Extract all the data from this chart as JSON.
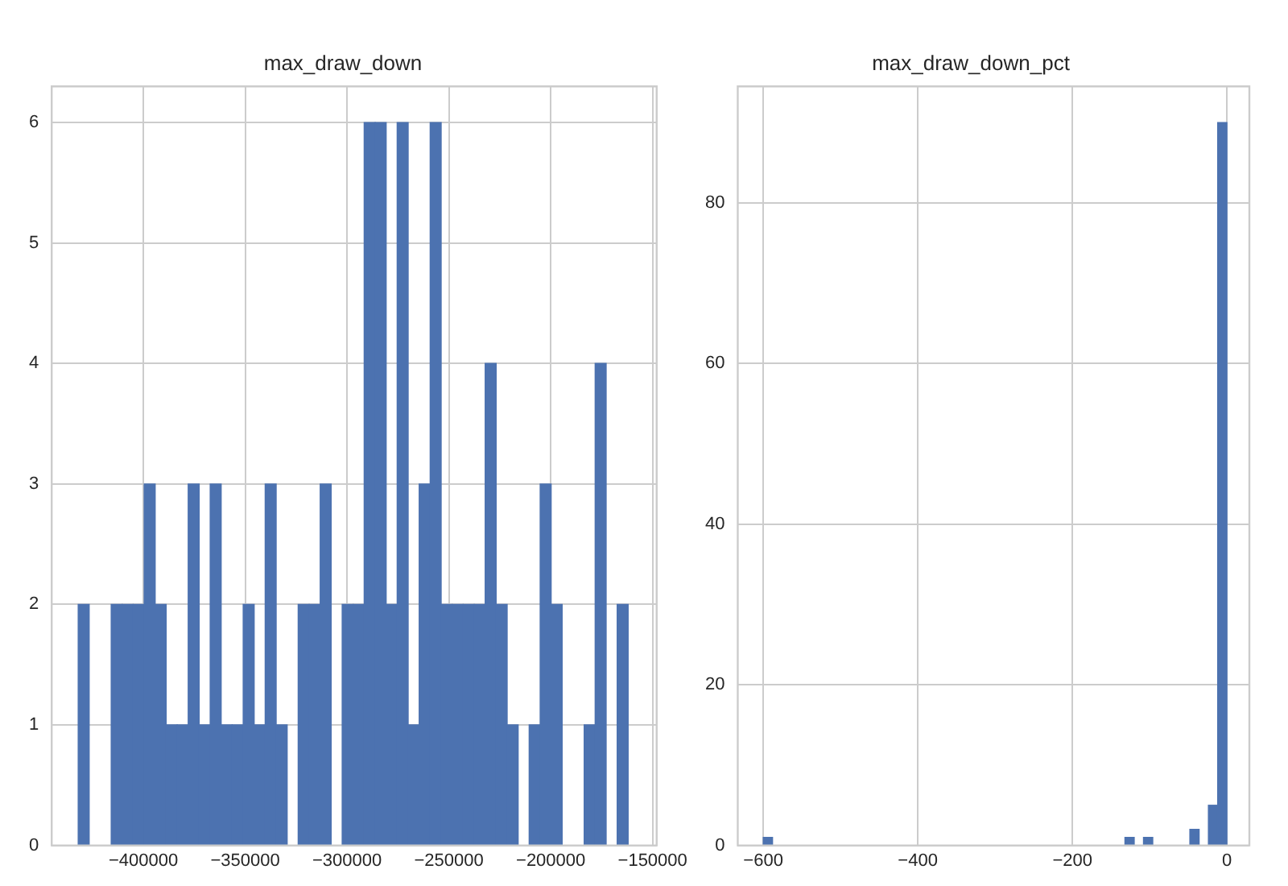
{
  "chart_data": [
    {
      "type": "histogram",
      "title": "max_draw_down",
      "color": "#4c72b0",
      "grid": true,
      "bins": [
        -432000,
        -426600,
        -421200,
        -415800,
        -410400,
        -405000,
        -399600,
        -394200,
        -388800,
        -383400,
        -378000,
        -372600,
        -367200,
        -361800,
        -356400,
        -351000,
        -345600,
        -340200,
        -334800,
        -329400,
        -324000,
        -318600,
        -313200,
        -307800,
        -302400,
        -297000,
        -291600,
        -286200,
        -280800,
        -275400,
        -270000,
        -264600,
        -259200,
        -253800,
        -248400,
        -243000,
        -237600,
        -232200,
        -226800,
        -221400,
        -216000,
        -210600,
        -205200,
        -199800,
        -194400,
        -189000,
        -183600,
        -178200,
        -172800,
        -167400,
        -162000
      ],
      "values": [
        2,
        0,
        0,
        2,
        2,
        2,
        3,
        2,
        1,
        1,
        3,
        1,
        3,
        1,
        1,
        2,
        1,
        3,
        1,
        0,
        2,
        2,
        3,
        0,
        2,
        2,
        6,
        6,
        2,
        6,
        1,
        3,
        6,
        2,
        2,
        2,
        2,
        4,
        2,
        1,
        0,
        1,
        3,
        2,
        0,
        0,
        1,
        4,
        0,
        2
      ],
      "xlim": [
        -445000,
        -148000
      ],
      "xticks": [
        -400000,
        -350000,
        -300000,
        -250000,
        -200000,
        -150000
      ],
      "ylim": [
        0,
        6.3
      ],
      "yticks": [
        0,
        1,
        2,
        3,
        4,
        5,
        6
      ]
    },
    {
      "type": "histogram",
      "title": "max_draw_down_pct",
      "color": "#4c72b0",
      "grid": true,
      "bins": [
        -600,
        -588,
        -576,
        -564,
        -552,
        -540,
        -528,
        -516,
        -504,
        -492,
        -480,
        -468,
        -456,
        -444,
        -432,
        -420,
        -408,
        -396,
        -384,
        -372,
        -360,
        -348,
        -336,
        -324,
        -312,
        -300,
        -288,
        -276,
        -264,
        -252,
        -240,
        -228,
        -216,
        -204,
        -192,
        -180,
        -168,
        -156,
        -144,
        -132,
        -120,
        -108,
        -96,
        -84,
        -72,
        -60,
        -48,
        -36,
        -24,
        -12,
        0
      ],
      "values": [
        1,
        0,
        0,
        0,
        0,
        0,
        0,
        0,
        0,
        0,
        0,
        0,
        0,
        0,
        0,
        0,
        0,
        0,
        0,
        0,
        0,
        0,
        0,
        0,
        0,
        0,
        0,
        0,
        0,
        0,
        0,
        0,
        0,
        0,
        0,
        0,
        0,
        0,
        0,
        1,
        0,
        1,
        0,
        0,
        0,
        0,
        2,
        0,
        5,
        90
      ],
      "xlim": [
        -633,
        29
      ],
      "xticks": [
        -600,
        -400,
        -200,
        0
      ],
      "ylim": [
        0,
        94.5
      ],
      "yticks": [
        0,
        20,
        40,
        60,
        80
      ]
    }
  ]
}
